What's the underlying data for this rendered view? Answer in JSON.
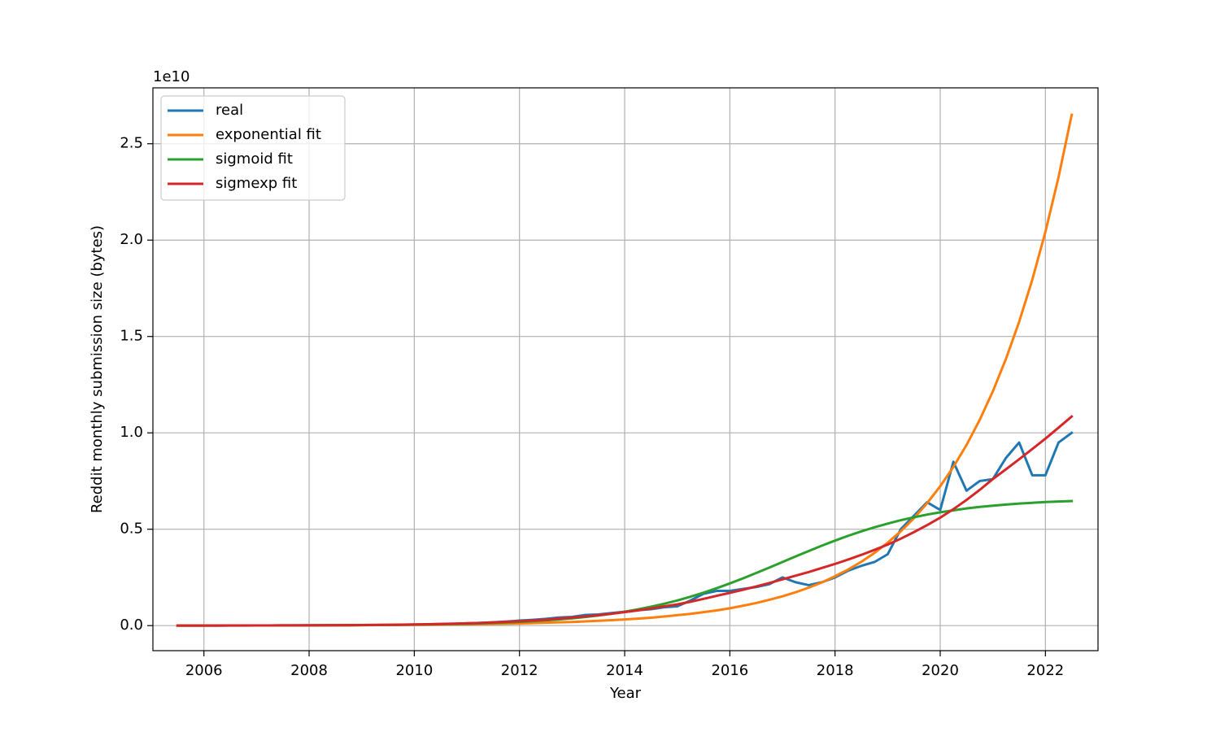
{
  "chart_data": {
    "type": "line",
    "y_label": "Reddit monthly submission size (bytes)",
    "x_label": "Year",
    "y_offset_label": "1e10",
    "x": [
      2005.5,
      2005.75,
      2006,
      2006.25,
      2006.5,
      2006.75,
      2007,
      2007.25,
      2007.5,
      2007.75,
      2008,
      2008.25,
      2008.5,
      2008.75,
      2009,
      2009.25,
      2009.5,
      2009.75,
      2010,
      2010.25,
      2010.5,
      2010.75,
      2011,
      2011.25,
      2011.5,
      2011.75,
      2012,
      2012.25,
      2012.5,
      2012.75,
      2013,
      2013.25,
      2013.5,
      2013.75,
      2014,
      2014.25,
      2014.5,
      2014.75,
      2015,
      2015.25,
      2015.5,
      2015.75,
      2016,
      2016.25,
      2016.5,
      2016.75,
      2017,
      2017.25,
      2017.5,
      2017.75,
      2018,
      2018.25,
      2018.5,
      2018.75,
      2019,
      2019.25,
      2019.5,
      2019.75,
      2020,
      2020.25,
      2020.5,
      2020.75,
      2021,
      2021.25,
      2021.5,
      2021.75,
      2022,
      2022.25,
      2022.5
    ],
    "series": [
      {
        "name": "real",
        "color": "#1f77b4",
        "values": [
          0.0002,
          0.0003,
          0.0004,
          0.0005,
          0.0006,
          0.0007,
          0.0008,
          0.001,
          0.0012,
          0.0014,
          0.0016,
          0.0019,
          0.0022,
          0.0026,
          0.003,
          0.0034,
          0.004,
          0.0046,
          0.0055,
          0.0065,
          0.008,
          0.0095,
          0.012,
          0.014,
          0.017,
          0.021,
          0.026,
          0.03,
          0.035,
          0.042,
          0.045,
          0.055,
          0.058,
          0.065,
          0.072,
          0.08,
          0.085,
          0.095,
          0.1,
          0.13,
          0.165,
          0.18,
          0.18,
          0.19,
          0.2,
          0.215,
          0.25,
          0.225,
          0.21,
          0.225,
          0.25,
          0.285,
          0.31,
          0.33,
          0.37,
          0.5,
          0.57,
          0.64,
          0.6,
          0.85,
          0.7,
          0.75,
          0.76,
          0.87,
          0.95,
          0.78,
          0.78,
          0.95,
          1.0
        ]
      },
      {
        "name": "exponential fit",
        "color": "#ff7f0e",
        "values": [
          0.0004,
          0.0004,
          0.0005,
          0.0006,
          0.0007,
          0.0008,
          0.0009,
          0.001,
          0.0011,
          0.0013,
          0.0014,
          0.0016,
          0.0019,
          0.0021,
          0.0024,
          0.0027,
          0.0031,
          0.0036,
          0.004,
          0.0046,
          0.0052,
          0.006,
          0.0068,
          0.0077,
          0.0088,
          0.01,
          0.011,
          0.013,
          0.015,
          0.017,
          0.019,
          0.022,
          0.025,
          0.028,
          0.032,
          0.036,
          0.041,
          0.047,
          0.054,
          0.061,
          0.07,
          0.079,
          0.09,
          0.103,
          0.117,
          0.134,
          0.152,
          0.173,
          0.197,
          0.224,
          0.256,
          0.291,
          0.331,
          0.377,
          0.43,
          0.489,
          0.557,
          0.635,
          0.723,
          0.823,
          0.937,
          1.067,
          1.215,
          1.384,
          1.576,
          1.794,
          2.043,
          2.327,
          2.65
        ]
      },
      {
        "name": "sigmoid fit",
        "color": "#2ca02c",
        "values": [
          0.00021,
          0.00025,
          0.0003,
          0.00036,
          0.00042,
          0.0005,
          0.0006,
          0.00072,
          0.00085,
          0.001,
          0.0012,
          0.0014,
          0.0017,
          0.002,
          0.0024,
          0.0029,
          0.0035,
          0.0041,
          0.0049,
          0.0058,
          0.0069,
          0.0082,
          0.0098,
          0.0116,
          0.0138,
          0.0164,
          0.0193,
          0.0229,
          0.0271,
          0.032,
          0.0379,
          0.0446,
          0.0524,
          0.0615,
          0.072,
          0.0841,
          0.0978,
          0.1134,
          0.1304,
          0.15,
          0.171,
          0.194,
          0.219,
          0.245,
          0.273,
          0.301,
          0.33,
          0.359,
          0.387,
          0.415,
          0.441,
          0.466,
          0.489,
          0.51,
          0.529,
          0.547,
          0.562,
          0.576,
          0.588,
          0.598,
          0.608,
          0.616,
          0.622,
          0.628,
          0.633,
          0.637,
          0.641,
          0.644,
          0.646
        ]
      },
      {
        "name": "sigmexp fit",
        "color": "#d62728",
        "values": [
          0.0003,
          0.00035,
          0.0004,
          0.00047,
          0.00054,
          0.00063,
          0.0008,
          0.00095,
          0.0011,
          0.0013,
          0.0015,
          0.0018,
          0.0021,
          0.0025,
          0.003,
          0.0036,
          0.0042,
          0.005,
          0.006,
          0.0071,
          0.0085,
          0.0101,
          0.012,
          0.0141,
          0.0166,
          0.0196,
          0.023,
          0.0267,
          0.031,
          0.0362,
          0.042,
          0.0478,
          0.0542,
          0.0616,
          0.07,
          0.0788,
          0.0887,
          0.0998,
          0.11,
          0.1236,
          0.1388,
          0.1545,
          0.17,
          0.186,
          0.203,
          0.221,
          0.24,
          0.259,
          0.278,
          0.299,
          0.32,
          0.343,
          0.367,
          0.393,
          0.42,
          0.451,
          0.485,
          0.521,
          0.56,
          0.604,
          0.652,
          0.704,
          0.76,
          0.811,
          0.863,
          0.916,
          0.97,
          1.027,
          1.085
        ]
      }
    ],
    "xlim": [
      2005.03,
      2023.0
    ],
    "ylim": [
      -0.13,
      2.79
    ],
    "xticks": [
      2006,
      2008,
      2010,
      2012,
      2014,
      2016,
      2018,
      2020,
      2022
    ],
    "yticks": [
      {
        "value": 0,
        "label": "0.0"
      },
      0.5,
      {
        "value": 1,
        "label": "1.0"
      },
      1.5,
      {
        "value": 2,
        "label": "2.0"
      },
      2.5
    ],
    "grid": true,
    "legend": "upper left"
  }
}
